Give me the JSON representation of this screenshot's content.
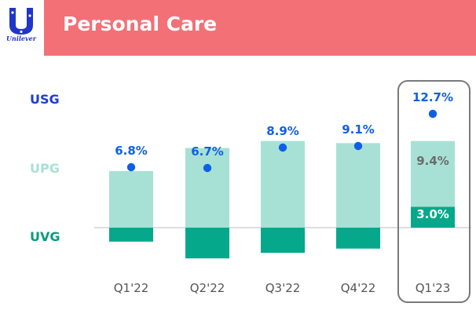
{
  "brand": {
    "name": "Unilever"
  },
  "header": {
    "title": "Personal Care"
  },
  "rows": {
    "usg": "USG",
    "upg": "UPG",
    "uvg": "UVG"
  },
  "colors": {
    "banner": "#f37077",
    "upg_bar": "#a7e1d5",
    "uvg_bar": "#06a88b",
    "usg_marker": "#0f5fe6",
    "usg_label": "#1f3bd6",
    "upg_label": "#a7e1d5",
    "uvg_label": "#0a9a7c",
    "highlight_box": "#7a7a7a"
  },
  "chart_data": {
    "type": "bar",
    "categories": [
      "Q1'22",
      "Q2'22",
      "Q3'22",
      "Q4'22",
      "Q1'23"
    ],
    "series": [
      {
        "name": "USG",
        "values": [
          6.8,
          6.7,
          8.9,
          9.1,
          12.7
        ],
        "labels": [
          "6.8%",
          "6.7%",
          "8.9%",
          "9.1%",
          "12.7%"
        ]
      },
      {
        "name": "UPG",
        "values": [
          8.1,
          11.4,
          12.4,
          12.1,
          9.4
        ],
        "labels": [
          "",
          "",
          "",
          "",
          "9.4%"
        ]
      },
      {
        "name": "UVG",
        "values": [
          -2.0,
          -4.4,
          -3.6,
          -3.0,
          3.0
        ],
        "labels": [
          "",
          "",
          "",
          "",
          "3.0%"
        ]
      }
    ],
    "highlighted_category": "Q1'23"
  }
}
